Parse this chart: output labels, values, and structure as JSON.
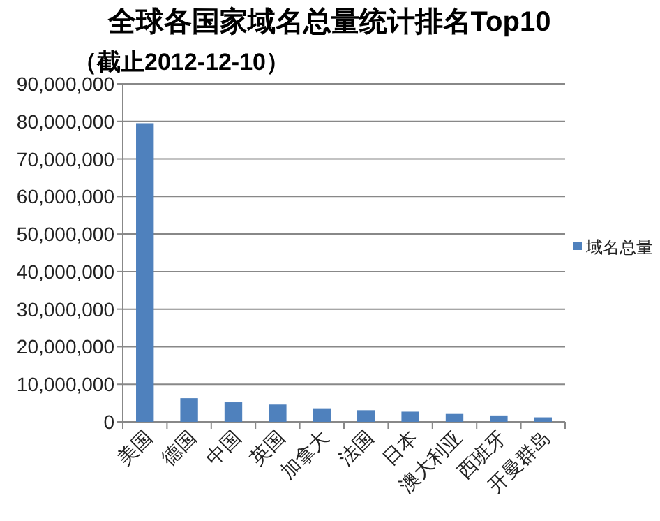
{
  "chart_data": {
    "type": "bar",
    "title": "全球各国家域名总量统计排名Top10",
    "subtitle": "（截止2012-12-10）",
    "categories": [
      "美国",
      "德国",
      "中国",
      "英国",
      "加拿大",
      "法国",
      "日本",
      "澳大利亚",
      "西班牙",
      "开曼群岛"
    ],
    "series": [
      {
        "name": "域名总量",
        "color": "#4f81bd",
        "values": [
          79500000,
          6300000,
          5200000,
          4600000,
          3600000,
          3100000,
          2700000,
          2100000,
          1700000,
          1200000
        ]
      }
    ],
    "ylim": [
      0,
      90000000
    ],
    "yticks": [
      0,
      {
        "value": 10000000,
        "label": "10,000,000"
      },
      {
        "value": 20000000,
        "label": "20,000,000"
      },
      {
        "value": 30000000,
        "label": "30,000,000"
      },
      {
        "value": 40000000,
        "label": "40,000,000"
      },
      {
        "value": 50000000,
        "label": "50,000,000"
      },
      {
        "value": 60000000,
        "label": "60,000,000"
      },
      {
        "value": 70000000,
        "label": "70,000,000"
      },
      {
        "value": 80000000,
        "label": "80,000,000"
      },
      {
        "value": 90000000,
        "label": "90,000,000"
      }
    ],
    "grid": "y",
    "legend": "right"
  }
}
